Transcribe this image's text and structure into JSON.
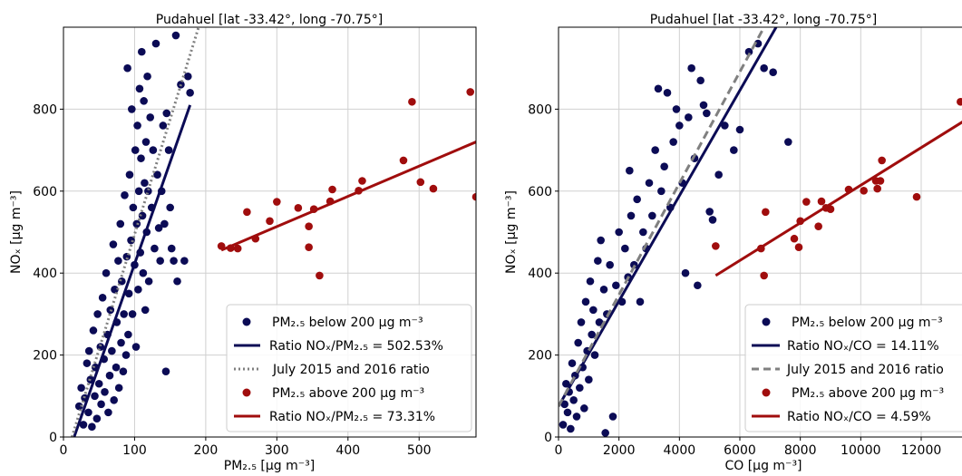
{
  "chart_data": [
    {
      "type": "scatter",
      "title": "Pudahuel [lat -33.42°, long -70.75°]",
      "xlabel": "PM2.5 [μg m-3]",
      "ylabel": "NOx [μg m-3]",
      "xlim": [
        0,
        580
      ],
      "ylim": [
        0,
        1000
      ],
      "xticks": [
        0,
        100,
        200,
        300,
        400,
        500
      ],
      "yticks": [
        0,
        200,
        400,
        600,
        800
      ],
      "grid": true,
      "legend_position": "lower-right",
      "series": [
        {
          "name": "PM2.5 below 200 μg m-3",
          "color": "#0b0b55",
          "kind": "scatter",
          "points": [
            [
              22,
              75
            ],
            [
              25,
              120
            ],
            [
              28,
              30
            ],
            [
              30,
              95
            ],
            [
              33,
              180
            ],
            [
              35,
              60
            ],
            [
              36,
              210
            ],
            [
              38,
              140
            ],
            [
              40,
              25
            ],
            [
              42,
              260
            ],
            [
              44,
              100
            ],
            [
              45,
              170
            ],
            [
              47,
              45
            ],
            [
              48,
              300
            ],
            [
              50,
              130
            ],
            [
              52,
              220
            ],
            [
              53,
              80
            ],
            [
              55,
              340
            ],
            [
              57,
              190
            ],
            [
              58,
              110
            ],
            [
              60,
              400
            ],
            [
              62,
              250
            ],
            [
              63,
              60
            ],
            [
              65,
              150
            ],
            [
              66,
              310
            ],
            [
              68,
              210
            ],
            [
              70,
              470
            ],
            [
              71,
              90
            ],
            [
              72,
              360
            ],
            [
              74,
              170
            ],
            [
              75,
              280
            ],
            [
              77,
              430
            ],
            [
              78,
              120
            ],
            [
              80,
              520
            ],
            [
              81,
              230
            ],
            [
              82,
              380
            ],
            [
              84,
              160
            ],
            [
              85,
              300
            ],
            [
              86,
              590
            ],
            [
              88,
              200
            ],
            [
              89,
              440
            ],
            [
              90,
              900
            ],
            [
              91,
              250
            ],
            [
              92,
              350
            ],
            [
              93,
              640
            ],
            [
              95,
              480
            ],
            [
              96,
              800
            ],
            [
              97,
              300
            ],
            [
              98,
              560
            ],
            [
              100,
              420
            ],
            [
              101,
              700
            ],
            [
              102,
              220
            ],
            [
              103,
              520
            ],
            [
              104,
              760
            ],
            [
              105,
              360
            ],
            [
              106,
              600
            ],
            [
              107,
              850
            ],
            [
              108,
              450
            ],
            [
              109,
              680
            ],
            [
              110,
              940
            ],
            [
              111,
              540
            ],
            [
              112,
              400
            ],
            [
              113,
              820
            ],
            [
              114,
              620
            ],
            [
              115,
              310
            ],
            [
              116,
              720
            ],
            [
              117,
              500
            ],
            [
              118,
              880
            ],
            [
              119,
              600
            ],
            [
              120,
              380
            ],
            [
              122,
              780
            ],
            [
              124,
              560
            ],
            [
              126,
              700
            ],
            [
              128,
              460
            ],
            [
              130,
              960
            ],
            [
              132,
              640
            ],
            [
              134,
              510
            ],
            [
              136,
              430
            ],
            [
              138,
              600
            ],
            [
              140,
              760
            ],
            [
              142,
              520
            ],
            [
              144,
              160
            ],
            [
              145,
              790
            ],
            [
              148,
              700
            ],
            [
              150,
              560
            ],
            [
              152,
              460
            ],
            [
              155,
              430
            ],
            [
              158,
              980
            ],
            [
              160,
              380
            ],
            [
              165,
              860
            ],
            [
              170,
              430
            ],
            [
              175,
              880
            ],
            [
              178,
              840
            ]
          ]
        },
        {
          "name": "Ratio NOx/PM2.5 = 502.53%",
          "color": "#0b0b55",
          "kind": "line",
          "points": [
            [
              15,
              0
            ],
            [
              178,
              810
            ]
          ]
        },
        {
          "name": "July 2015 and 2016 ratio",
          "color": "#808080",
          "kind": "dotted-line",
          "points": [
            [
              12,
              0
            ],
            [
              190,
              1000
            ]
          ]
        },
        {
          "name": "PM2.5 above 200 μg m-3",
          "color": "#a00d0d",
          "kind": "scatter",
          "points": [
            [
              222,
              466
            ],
            [
              235,
              461
            ],
            [
              245,
              460
            ],
            [
              258,
              549
            ],
            [
              270,
              484
            ],
            [
              290,
              527
            ],
            [
              300,
              574
            ],
            [
              330,
              559
            ],
            [
              345,
              514
            ],
            [
              345,
              463
            ],
            [
              352,
              556
            ],
            [
              360,
              394
            ],
            [
              375,
              575
            ],
            [
              378,
              604
            ],
            [
              415,
              601
            ],
            [
              420,
              625
            ],
            [
              478,
              675
            ],
            [
              490,
              818
            ],
            [
              502,
              622
            ],
            [
              520,
              606
            ],
            [
              572,
              842
            ],
            [
              580,
              586
            ]
          ]
        },
        {
          "name": "Ratio NOx/PM2.5 = 73.31%",
          "color": "#a00d0d",
          "kind": "line",
          "points": [
            [
              222,
              456
            ],
            [
              580,
              720
            ]
          ]
        }
      ]
    },
    {
      "type": "scatter",
      "title": "Pudahuel [lat -33.42°, long -70.75°]",
      "xlabel": "CO [μg m-3]",
      "ylabel": "NOx [μg m-3]",
      "xlim": [
        0,
        13500
      ],
      "ylim": [
        0,
        1000
      ],
      "xticks": [
        0,
        2000,
        4000,
        6000,
        8000,
        10000,
        12000
      ],
      "yticks": [
        0,
        200,
        400,
        600,
        800
      ],
      "grid": true,
      "legend_position": "lower-right",
      "series": [
        {
          "name": "PM2.5 below 200 μg m-3",
          "color": "#0b0b55",
          "kind": "scatter",
          "points": [
            [
              150,
              30
            ],
            [
              200,
              80
            ],
            [
              250,
              130
            ],
            [
              300,
              60
            ],
            [
              350,
              110
            ],
            [
              400,
              20
            ],
            [
              450,
              180
            ],
            [
              500,
              90
            ],
            [
              550,
              150
            ],
            [
              600,
              50
            ],
            [
              650,
              230
            ],
            [
              700,
              120
            ],
            [
              750,
              280
            ],
            [
              800,
              170
            ],
            [
              850,
              70
            ],
            [
              900,
              330
            ],
            [
              950,
              210
            ],
            [
              1000,
              140
            ],
            [
              1050,
              380
            ],
            [
              1100,
              250
            ],
            [
              1150,
              310
            ],
            [
              1200,
              200
            ],
            [
              1300,
              430
            ],
            [
              1350,
              280
            ],
            [
              1400,
              480
            ],
            [
              1500,
              360
            ],
            [
              1550,
              10
            ],
            [
              1600,
              300
            ],
            [
              1700,
              420
            ],
            [
              1800,
              50
            ],
            [
              1900,
              370
            ],
            [
              2000,
              500
            ],
            [
              2100,
              330
            ],
            [
              2200,
              460
            ],
            [
              2300,
              390
            ],
            [
              2350,
              650
            ],
            [
              2400,
              540
            ],
            [
              2500,
              420
            ],
            [
              2600,
              580
            ],
            [
              2700,
              330
            ],
            [
              2800,
              500
            ],
            [
              2900,
              460
            ],
            [
              3000,
              620
            ],
            [
              3100,
              540
            ],
            [
              3200,
              700
            ],
            [
              3300,
              850
            ],
            [
              3400,
              600
            ],
            [
              3500,
              660
            ],
            [
              3600,
              840
            ],
            [
              3700,
              560
            ],
            [
              3800,
              720
            ],
            [
              3900,
              800
            ],
            [
              4000,
              760
            ],
            [
              4100,
              620
            ],
            [
              4200,
              400
            ],
            [
              4300,
              780
            ],
            [
              4400,
              900
            ],
            [
              4500,
              680
            ],
            [
              4600,
              370
            ],
            [
              4700,
              870
            ],
            [
              4800,
              810
            ],
            [
              4900,
              790
            ],
            [
              5000,
              550
            ],
            [
              5100,
              530
            ],
            [
              5300,
              640
            ],
            [
              5500,
              760
            ],
            [
              5800,
              700
            ],
            [
              6000,
              750
            ],
            [
              6300,
              940
            ],
            [
              6600,
              960
            ],
            [
              6800,
              900
            ],
            [
              7100,
              890
            ],
            [
              7600,
              720
            ]
          ]
        },
        {
          "name": "Ratio NOx/CO = 14.11%",
          "color": "#0b0b55",
          "kind": "line",
          "points": [
            [
              0,
              75
            ],
            [
              7200,
              1000
            ]
          ]
        },
        {
          "name": "July 2015 and 2016 ratio",
          "color": "#808080",
          "kind": "dashed-line",
          "points": [
            [
              0,
              75
            ],
            [
              6800,
              1000
            ]
          ]
        },
        {
          "name": "PM2.5 above 200 μg m-3",
          "color": "#a00d0d",
          "kind": "scatter",
          "points": [
            [
              5200,
              466
            ],
            [
              6700,
              460
            ],
            [
              6800,
              394
            ],
            [
              6850,
              549
            ],
            [
              7800,
              484
            ],
            [
              7950,
              463
            ],
            [
              8000,
              527
            ],
            [
              8200,
              574
            ],
            [
              8600,
              514
            ],
            [
              8700,
              575
            ],
            [
              8850,
              559
            ],
            [
              9000,
              556
            ],
            [
              9600,
              604
            ],
            [
              10100,
              601
            ],
            [
              10500,
              625
            ],
            [
              10550,
              606
            ],
            [
              10650,
              625
            ],
            [
              10700,
              675
            ],
            [
              11850,
              586
            ],
            [
              13300,
              818
            ]
          ]
        },
        {
          "name": "Ratio NOx/CO = 4.59%",
          "color": "#a00d0d",
          "kind": "line",
          "points": [
            [
              5200,
              394
            ],
            [
              13500,
              775
            ]
          ]
        }
      ]
    }
  ],
  "panels": [
    {
      "title": "Pudahuel [lat -33.42°, long -70.75°]",
      "legend": [
        "PM₂.₅ below 200 μg m⁻³",
        "Ratio NOₓ/PM₂.₅ = 502.53%",
        "July 2015 and 2016 ratio",
        "PM₂.₅ above 200 μg m⁻³",
        "Ratio NOₓ/PM₂.₅ = 73.31%"
      ],
      "xlabel": "PM₂.₅ [μg m⁻³]",
      "ylabel": "NOₓ [μg m⁻³]"
    },
    {
      "title": "Pudahuel [lat -33.42°, long -70.75°]",
      "legend": [
        "PM₂.₅ below 200 μg m⁻³",
        "Ratio NOₓ/CO = 14.11%",
        "July 2015 and 2016 ratio",
        "PM₂.₅ above 200 μg m⁻³",
        "Ratio NOₓ/CO = 4.59%"
      ],
      "xlabel": "CO [μg m⁻³]",
      "ylabel": "NOₓ [μg m⁻³]"
    }
  ]
}
